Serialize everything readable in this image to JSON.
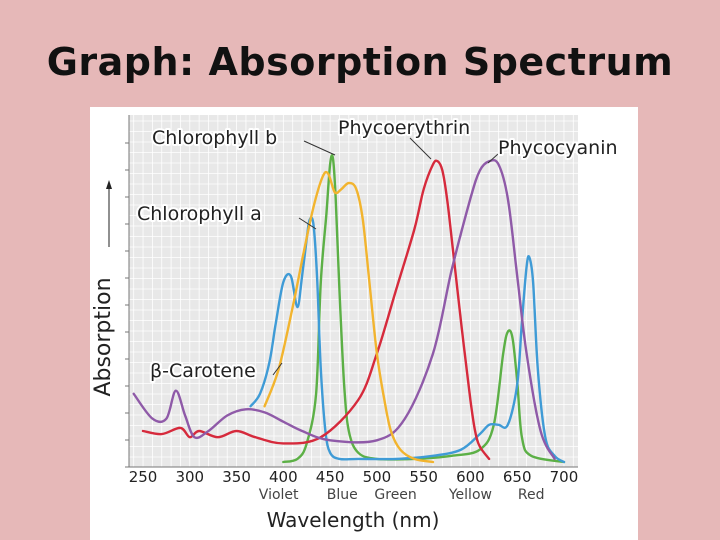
{
  "slide": {
    "title": "Graph: Absorption Spectrum"
  },
  "chart_data": {
    "type": "line",
    "xlabel": "Wavelength (nm)",
    "ylabel": "Absorption",
    "xlim": [
      235,
      715
    ],
    "x_ticks": [
      250,
      300,
      350,
      400,
      450,
      500,
      550,
      600,
      650,
      700
    ],
    "ylim": [
      0,
      100
    ],
    "grid": true,
    "color_bands": [
      "Violet",
      "Blue",
      "Green",
      "Yellow",
      "Red"
    ],
    "series": [
      {
        "name": "Chlorophyll b",
        "color": "#5cb046",
        "x": [
          400,
          415,
          425,
          435,
          440,
          446,
          450,
          453,
          456,
          460,
          465,
          470,
          480,
          500,
          540,
          580,
          610,
          625,
          635,
          640,
          645,
          650,
          655,
          665,
          700
        ],
        "y": [
          0,
          1,
          6,
          22,
          58,
          80,
          96,
          98,
          85,
          55,
          25,
          10,
          3,
          1,
          1,
          2,
          4,
          12,
          35,
          42,
          40,
          26,
          8,
          2,
          0
        ]
      },
      {
        "name": "Chlorophyll a",
        "color": "#3f9bd6",
        "x": [
          365,
          375,
          385,
          392,
          400,
          408,
          415,
          420,
          425,
          428,
          432,
          436,
          440,
          445,
          450,
          460,
          480,
          520,
          560,
          590,
          610,
          620,
          630,
          640,
          650,
          655,
          660,
          663,
          667,
          672,
          680,
          690,
          700
        ],
        "y": [
          18,
          22,
          32,
          45,
          58,
          60,
          50,
          60,
          72,
          78,
          77,
          60,
          30,
          10,
          3,
          1,
          1,
          1,
          2,
          4,
          9,
          12,
          12,
          12,
          25,
          45,
          63,
          66,
          58,
          30,
          8,
          2,
          0
        ]
      },
      {
        "name": "Phycoerythrin",
        "color": "#d62a3c",
        "x": [
          250,
          270,
          290,
          300,
          310,
          330,
          350,
          370,
          400,
          440,
          480,
          500,
          520,
          540,
          550,
          560,
          565,
          570,
          575,
          580,
          590,
          600,
          605,
          610,
          620
        ],
        "y": [
          10,
          9,
          11,
          8,
          10,
          8,
          10,
          8,
          6,
          8,
          20,
          35,
          55,
          75,
          88,
          96,
          97,
          94,
          85,
          72,
          45,
          20,
          10,
          5,
          1
        ]
      },
      {
        "name": "Phycocyanin",
        "color": "#8f5aa8",
        "x": [
          240,
          260,
          275,
          285,
          295,
          305,
          320,
          340,
          360,
          380,
          400,
          420,
          450,
          500,
          530,
          560,
          580,
          600,
          610,
          620,
          630,
          640,
          650,
          660,
          675,
          690
        ],
        "y": [
          22,
          14,
          14,
          23,
          15,
          8,
          10,
          15,
          17,
          16,
          13,
          10,
          7,
          7,
          14,
          35,
          62,
          85,
          94,
          97,
          96,
          85,
          60,
          35,
          10,
          1
        ]
      },
      {
        "name": "β-Carotene",
        "color": "#f2b42e",
        "x": [
          380,
          395,
          410,
          422,
          432,
          442,
          448,
          455,
          462,
          470,
          478,
          485,
          492,
          500,
          508,
          515,
          525,
          540,
          560
        ],
        "y": [
          18,
          30,
          50,
          68,
          82,
          92,
          93,
          87,
          88,
          90,
          88,
          78,
          58,
          35,
          20,
          10,
          4,
          1,
          0
        ]
      }
    ]
  }
}
